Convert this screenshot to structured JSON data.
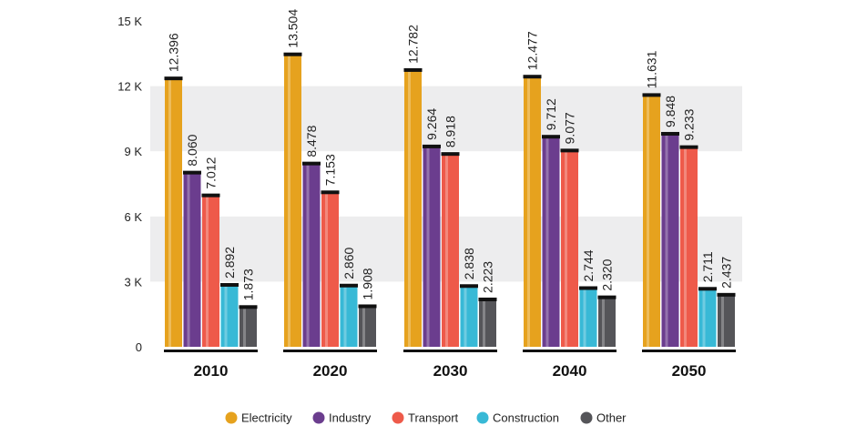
{
  "chart_data": {
    "type": "bar",
    "categories": [
      "2010",
      "2020",
      "2030",
      "2040",
      "2050"
    ],
    "series": [
      {
        "name": "Electricity",
        "color": "#E6A21E",
        "values": [
          12.396,
          13.504,
          12.782,
          12.477,
          11.631
        ],
        "labels": [
          "12.396",
          "13.504",
          "12.782",
          "12.477",
          "11.631"
        ]
      },
      {
        "name": "Industry",
        "color": "#6B3D8E",
        "values": [
          8.06,
          8.478,
          9.264,
          9.712,
          9.848
        ],
        "labels": [
          "8.060",
          "8.478",
          "9.264",
          "9.712",
          "9.848"
        ]
      },
      {
        "name": "Transport",
        "color": "#EE5A4A",
        "values": [
          7.012,
          7.153,
          8.918,
          9.077,
          9.233
        ],
        "labels": [
          "7.012",
          "7.153",
          "8.918",
          "9.077",
          "9.233"
        ]
      },
      {
        "name": "Construction",
        "color": "#38B9D6",
        "values": [
          2.892,
          2.86,
          2.838,
          2.744,
          2.711
        ],
        "labels": [
          "2.892",
          "2.860",
          "2.838",
          "2.744",
          "2.711"
        ]
      },
      {
        "name": "Other",
        "color": "#555559",
        "values": [
          1.873,
          1.908,
          2.223,
          2.32,
          2.437
        ],
        "labels": [
          "1.873",
          "1.908",
          "2.223",
          "2.320",
          "2.437"
        ]
      }
    ],
    "ylim": [
      0,
      15
    ],
    "yticks": [
      0,
      3,
      6,
      9,
      12,
      15
    ],
    "ytick_labels": [
      "0",
      "3 K",
      "6 K",
      "9 K",
      "12 K",
      "15 K"
    ],
    "title": "",
    "xlabel": "",
    "ylabel": "",
    "legend_position": "bottom",
    "grid": "alternating-bands"
  }
}
